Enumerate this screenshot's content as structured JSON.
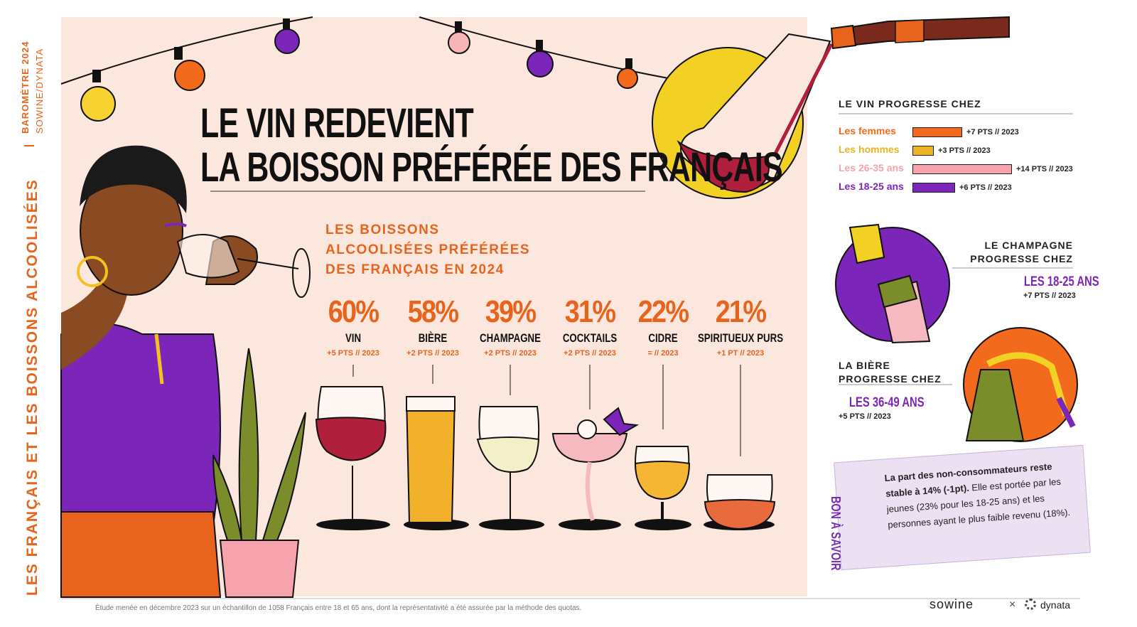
{
  "side": {
    "barometre": "BAROMÈTRE 2024",
    "source_brands": "SOWINE/DYNATA",
    "series_title": "LES FRANÇAIS ET LES BOISSONS ALCOOLISÉES"
  },
  "title": {
    "line1": "LE VIN REDEVIENT",
    "line2": "LA BOISSON PRÉFÉRÉE DES FRANÇAIS"
  },
  "chart_data": {
    "type": "bar",
    "title": "LES BOISSONS ALCOOLISÉES PRÉFÉRÉES DES FRANÇAIS EN 2024",
    "title_lines": [
      "LES BOISSONS",
      "ALCOOLISÉES PRÉFÉRÉES",
      "DES FRANÇAIS EN 2024"
    ],
    "categories": [
      "VIN",
      "BIÈRE",
      "CHAMPAGNE",
      "COCKTAILS",
      "CIDRE",
      "SPIRITUEUX PURS"
    ],
    "values": [
      60,
      58,
      39,
      31,
      22,
      21
    ],
    "value_labels": [
      "60%",
      "58%",
      "39%",
      "31%",
      "22%",
      "21%"
    ],
    "evolution_labels": [
      "+5 PTS // 2023",
      "+2 PTS // 2023",
      "+2 PTS // 2023",
      "+2 PTS // 2023",
      "= // 2023",
      "+1 PT // 2023"
    ],
    "evolution_points": [
      5,
      2,
      2,
      2,
      0,
      1
    ],
    "unit": "%",
    "glass_colors": [
      "#b01f3c",
      "#f2b12b",
      "#f3f0c9",
      "#f6b9bf",
      "#f4b633",
      "#e96a3d"
    ]
  },
  "vin_progresse": {
    "heading": "LE VIN PROGRESSE CHEZ",
    "segments": [
      {
        "label": "Les femmes",
        "points": 7,
        "value_label": "+7 PTS // 2023",
        "color": "#f26a1b"
      },
      {
        "label": "Les hommes",
        "points": 3,
        "value_label": "+3 PTS // 2023",
        "color": "#ecb324"
      },
      {
        "label": "Les 26-35 ans",
        "points": 14,
        "value_label": "+14 PTS // 2023",
        "color": "#f6a3ae"
      },
      {
        "label": "Les 18-25 ans",
        "points": 6,
        "value_label": "+6 PTS // 2023",
        "color": "#7b26b9"
      }
    ]
  },
  "champagne": {
    "heading_line1": "LE CHAMPAGNE",
    "heading_line2": "PROGRESSE CHEZ",
    "segment": "LES 18-25 ANS",
    "value": "+7 PTS // 2023",
    "color": "#7b26b9"
  },
  "biere": {
    "heading_line1": "LA BIÈRE",
    "heading_line2": "PROGRESSE CHEZ",
    "segment": "LES 36-49 ANS",
    "value": "+5 PTS // 2023",
    "color": "#7b26b9"
  },
  "bon_a_savoir": {
    "label": "BON À SAVOIR",
    "text_bold": "La part des non-consommateurs reste stable à 14% (-1pt).",
    "text_rest": " Elle est portée par les jeunes (23% pour les 18-25 ans) et les personnes ayant le plus faible revenu (18%)."
  },
  "footer": {
    "source": "Étude menée en décembre 2023 sur un échantillon de 1058 Français entre 18 et 65 ans, dont la représentativité a été assurée par la méthode des quotas.",
    "logo_left": "sowine",
    "separator": "×",
    "logo_right": "dynata"
  },
  "colors": {
    "orange": "#e8641c",
    "purple": "#7b26b9",
    "panel": "#fbe7de",
    "ink": "#111111"
  }
}
